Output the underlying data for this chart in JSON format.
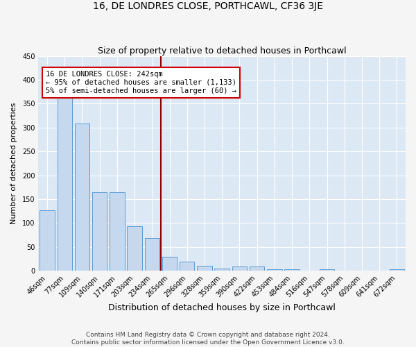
{
  "title": "16, DE LONDRES CLOSE, PORTHCAWL, CF36 3JE",
  "subtitle": "Size of property relative to detached houses in Porthcawl",
  "xlabel": "Distribution of detached houses by size in Porthcawl",
  "ylabel": "Number of detached properties",
  "categories": [
    "46sqm",
    "77sqm",
    "109sqm",
    "140sqm",
    "171sqm",
    "203sqm",
    "234sqm",
    "265sqm",
    "296sqm",
    "328sqm",
    "359sqm",
    "390sqm",
    "422sqm",
    "453sqm",
    "484sqm",
    "516sqm",
    "547sqm",
    "578sqm",
    "609sqm",
    "641sqm",
    "672sqm"
  ],
  "values": [
    127,
    368,
    308,
    164,
    164,
    94,
    69,
    29,
    19,
    11,
    5,
    9,
    9,
    4,
    3,
    0,
    4,
    0,
    0,
    0,
    4
  ],
  "bar_color": "#c5d8ed",
  "bar_edge_color": "#5b9bd5",
  "vline_color": "#8b0000",
  "annotation_line1": "16 DE LONDRES CLOSE: 242sqm",
  "annotation_line2": "← 95% of detached houses are smaller (1,133)",
  "annotation_line3": "5% of semi-detached houses are larger (60) →",
  "annotation_box_color": "#ffffff",
  "annotation_box_edge_color": "#cc0000",
  "ylim": [
    0,
    450
  ],
  "yticks": [
    0,
    50,
    100,
    150,
    200,
    250,
    300,
    350,
    400,
    450
  ],
  "background_color": "#dde8f5",
  "plot_bg_color": "#dde8f5",
  "fig_bg_color": "#f5f5f5",
  "grid_color": "#ffffff",
  "footer": "Contains HM Land Registry data © Crown copyright and database right 2024.\nContains public sector information licensed under the Open Government Licence v3.0.",
  "title_fontsize": 10,
  "subtitle_fontsize": 9,
  "xlabel_fontsize": 9,
  "ylabel_fontsize": 8,
  "tick_fontsize": 7,
  "footer_fontsize": 6.5,
  "annotation_fontsize": 7.5
}
